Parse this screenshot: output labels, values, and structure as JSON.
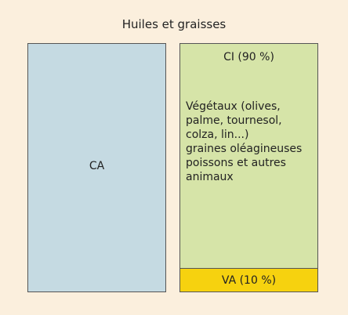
{
  "title": "Huiles et graisses",
  "ca": {
    "label": "CA",
    "color": "#c5dae2"
  },
  "ci": {
    "label": "CI (90 %)",
    "share_percent": 90,
    "color": "#d6e4a8",
    "description_lines": [
      "Végétaux (olives,",
      "palme, tournesol,",
      "colza, lin...)",
      "graines oléagineuses",
      "poissons et autres",
      "animaux"
    ]
  },
  "va": {
    "label": "VA (10 %)",
    "share_percent": 10,
    "color": "#f6d20f"
  },
  "colors": {
    "background": "#fbefdd",
    "border": "#555555"
  }
}
